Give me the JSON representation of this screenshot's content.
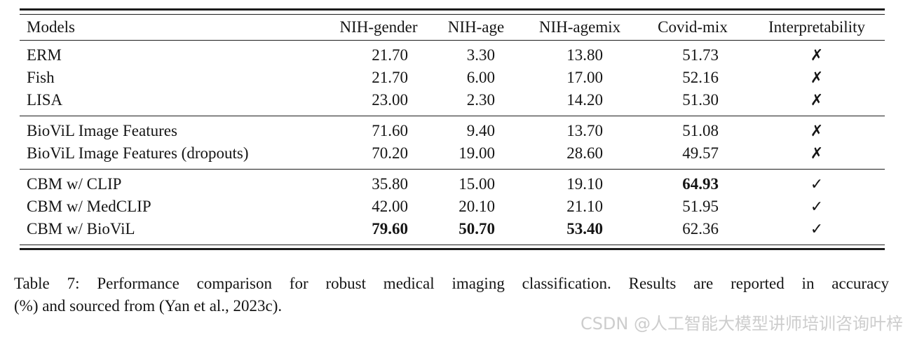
{
  "table": {
    "columns": [
      "Models",
      "NIH-gender",
      "NIH-age",
      "NIH-agemix",
      "Covid-mix",
      "Interpretability"
    ],
    "marks": {
      "cross": "✗",
      "check": "✓"
    },
    "sections": [
      {
        "rows": [
          {
            "model": "ERM",
            "nih_gender": "21.70",
            "nih_age": "3.30",
            "nih_agemix": "13.80",
            "covid_mix": "51.73",
            "interp": "✗"
          },
          {
            "model": "Fish",
            "nih_gender": "21.70",
            "nih_age": "6.00",
            "nih_agemix": "17.00",
            "covid_mix": "52.16",
            "interp": "✗"
          },
          {
            "model": "LISA",
            "nih_gender": "23.00",
            "nih_age": "2.30",
            "nih_agemix": "14.20",
            "covid_mix": "51.30",
            "interp": "✗"
          }
        ]
      },
      {
        "rows": [
          {
            "model": "BioViL Image Features",
            "nih_gender": "71.60",
            "nih_age": "9.40",
            "nih_agemix": "13.70",
            "covid_mix": "51.08",
            "interp": "✗"
          },
          {
            "model": "BioViL Image Features (dropouts)",
            "nih_gender": "70.20",
            "nih_age": "19.00",
            "nih_agemix": "28.60",
            "covid_mix": "49.57",
            "interp": "✗"
          }
        ]
      },
      {
        "rows": [
          {
            "model": "CBM w/ CLIP",
            "nih_gender": "35.80",
            "nih_age": "15.00",
            "nih_agemix": "19.10",
            "covid_mix": "64.93",
            "interp": "✓"
          },
          {
            "model": "CBM w/ MedCLIP",
            "nih_gender": "42.00",
            "nih_age": "20.10",
            "nih_agemix": "21.10",
            "covid_mix": "51.95",
            "interp": "✓"
          },
          {
            "model": "CBM w/ BioViL",
            "nih_gender": "79.60",
            "nih_age": "50.70",
            "nih_agemix": "53.40",
            "covid_mix": "62.36",
            "interp": "✓"
          }
        ]
      }
    ]
  },
  "caption": {
    "line1": "Table 7: Performance comparison for robust medical imaging classification. Results are reported in accuracy",
    "line2": "(%) and sourced from (Yan et al., 2023c)."
  },
  "watermark": {
    "text": "CSDN @人工智能大模型讲师培训咨询叶梓",
    "color": "#cdcdcd"
  }
}
